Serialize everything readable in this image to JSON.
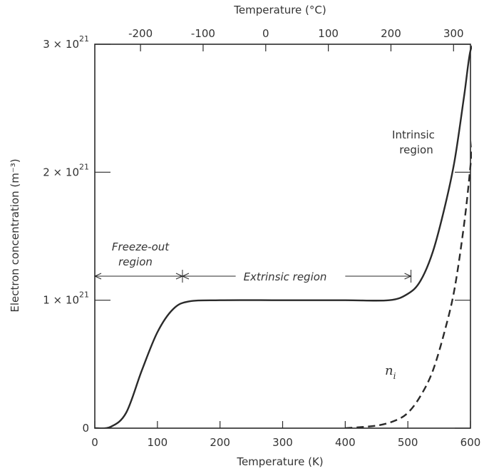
{
  "chart_data": {
    "type": "line",
    "xlabel": "Temperature (K)",
    "x2label": "Temperature (°C)",
    "ylabel": "Electron concentration (m⁻³)",
    "xlim": [
      0,
      600
    ],
    "ylim": [
      0,
      3e+21
    ],
    "x_ticks": [
      0,
      100,
      200,
      300,
      400,
      500,
      600
    ],
    "x_tick_labels": [
      "0",
      "100",
      "200",
      "300",
      "400",
      "500",
      "600"
    ],
    "x2_ticks_celsius": [
      -200,
      -100,
      0,
      100,
      200,
      300
    ],
    "x2_tick_labels": [
      "-200",
      "-100",
      "0",
      "100",
      "200",
      "300"
    ],
    "y_ticks": [
      0,
      1e+21,
      2e+21,
      3e+21
    ],
    "y_tick_labels": [
      "0",
      "1 × 10",
      "2 × 10",
      "3 × 10"
    ],
    "y_tick_exponent": "21",
    "grid": false,
    "series": [
      {
        "style": "solid",
        "x": [
          0,
          25,
          50,
          75,
          100,
          125,
          150,
          200,
          300,
          400,
          470,
          500,
          520,
          540,
          560,
          575,
          590,
          600,
          610
        ],
        "y": [
          0,
          1e+19,
          1.2e+20,
          4.5e+20,
          7.5e+20,
          9.3e+20,
          9.9e+20,
          1e+21,
          1e+21,
          1e+21,
          1e+21,
          1.05e+21,
          1.15e+21,
          1.38e+21,
          1.75e+21,
          2.1e+21,
          2.6e+21,
          2.95e+21,
          3e+21
        ]
      },
      {
        "name": "n",
        "name_subscript": "i",
        "style": "dashed",
        "x": [
          400,
          450,
          480,
          500,
          520,
          540,
          560,
          575,
          590,
          600,
          610,
          620
        ],
        "y": [
          0,
          2e+19,
          6e+19,
          1.2e+20,
          2.5e+20,
          4.5e+20,
          7.8e+20,
          1.1e+21,
          1.6e+21,
          2.05e+21,
          2.6e+21,
          3e+21
        ]
      }
    ],
    "annotations": {
      "freeze_out": [
        "Freeze-out",
        "region"
      ],
      "extrinsic": "Extrinsic region",
      "intrinsic": [
        "Intrinsic",
        "region"
      ]
    }
  }
}
